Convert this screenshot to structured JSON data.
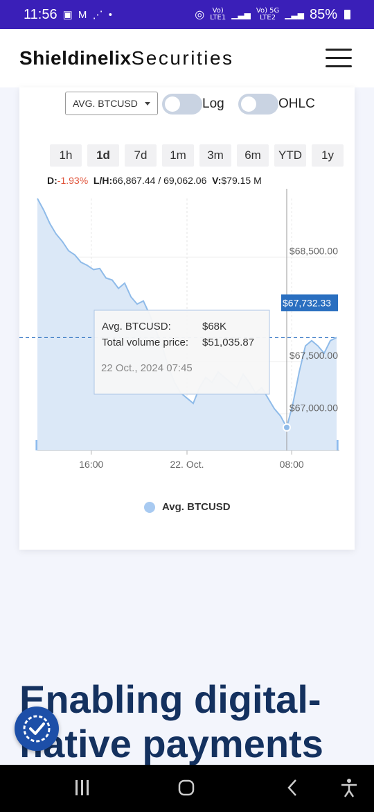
{
  "status_bar": {
    "time": "11:56",
    "left_icons": "▣ M ⋰ •",
    "net1_top": "Vo)",
    "net1_bottom": "LTE1",
    "net2_top": "Vo) 5G",
    "net2_bottom": "LTE2",
    "battery": "85%"
  },
  "header": {
    "brand_bold": "Shieldinelix",
    "brand_light": "Securities"
  },
  "chart_controls": {
    "series_select": "AVG. BTCUSD",
    "log_label": "Log",
    "ohlc_label": "OHLC",
    "ranges": [
      "1h",
      "1d",
      "7d",
      "1m",
      "3m",
      "6m",
      "YTD",
      "1y"
    ],
    "active_range": "1d"
  },
  "stats": {
    "d_label": "D:",
    "d_value": "-1.93%",
    "lh_label": "L/H:",
    "lh_value": "66,867.44 / 69,062.06",
    "v_label": "V:",
    "v_value": "$79.15 M"
  },
  "tooltip": {
    "series_label": "Avg. BTCUSD:",
    "series_value": "$68K",
    "volume_label": "Total volume price:",
    "volume_value": "$51,035.87",
    "datetime": "22 Oct., 2024 07:45"
  },
  "current_price": "$67,732.33",
  "legend_label": "Avg. BTCUSD",
  "headline": {
    "line1": "Enabling digital-",
    "line2": "native payments"
  },
  "colors": {
    "status_bar": "#3a1fb8",
    "line": "#8fbbe9",
    "area": "#dbe8f7",
    "volume": "#8dbbee",
    "price_badge": "#2a6fc0",
    "headline": "#14315f",
    "negative": "#e0533a"
  },
  "chart_data": {
    "type": "line",
    "series": [
      {
        "name": "Avg. BTCUSD",
        "values": [
          69060,
          68950,
          68820,
          68720,
          68650,
          68560,
          68520,
          68450,
          68420,
          68380,
          68390,
          68300,
          68280,
          68200,
          68250,
          68120,
          68050,
          68080,
          67950,
          67800,
          67650,
          67450,
          67300,
          67200,
          67150,
          67100,
          67250,
          67350,
          67300,
          67400,
          67350,
          67300,
          67250,
          67380,
          67300,
          67200,
          67250,
          67150,
          67050,
          66980,
          66870,
          67100,
          67400,
          67650,
          67700,
          67650,
          67580,
          67700,
          67730
        ]
      }
    ],
    "volume": [
      2,
      1,
      2,
      1,
      3,
      2,
      1,
      1,
      2,
      3,
      1,
      2,
      1,
      1,
      2,
      2,
      1,
      3,
      4,
      5,
      6,
      9,
      12,
      10,
      8,
      7,
      6,
      5,
      4,
      6,
      5,
      4,
      6,
      7,
      8,
      5,
      3,
      4,
      6,
      2,
      3,
      4,
      2,
      1,
      2,
      3,
      2,
      1,
      2
    ],
    "ylim": [
      66650,
      69060
    ],
    "y_ticks": [
      "$68,500.00",
      "$67,500.00",
      "$67,000.00"
    ],
    "y_tick_values": [
      68500,
      67500,
      67000
    ],
    "x_ticks": [
      "16:00",
      "22. Oct.",
      "08:00"
    ],
    "x_tick_fractions": [
      0.18,
      0.5,
      0.85
    ],
    "last_value_label": "$67,732.33",
    "legend": [
      "Avg. BTCUSD"
    ]
  }
}
